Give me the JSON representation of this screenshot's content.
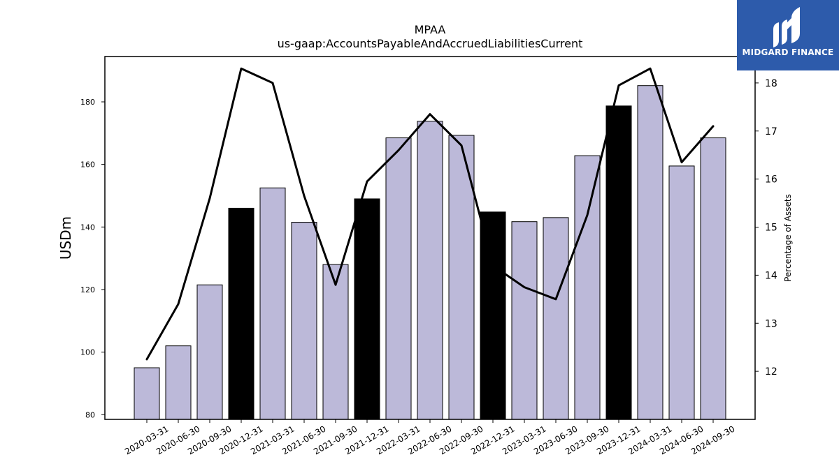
{
  "chart_data": {
    "type": "bar",
    "title": "MPAA",
    "subtitle": "us-gaap:AccountsPayableAndAccruedLiabilitiesCurrent",
    "ylabel": "USDm",
    "y2label": "Percentage of Assets",
    "categories": [
      "2020-03-31",
      "2020-06-30",
      "2020-09-30",
      "2020-12-31",
      "2021-03-31",
      "2021-06-30",
      "2021-09-30",
      "2021-12-31",
      "2022-03-31",
      "2022-06-30",
      "2022-09-30",
      "2022-12-31",
      "2023-03-31",
      "2023-06-30",
      "2023-09-30",
      "2023-12-31",
      "2024-03-31",
      "2024-06-30",
      "2024-09-30"
    ],
    "ylim": [
      78.5,
      194.5
    ],
    "y2lim": [
      11.0,
      18.55
    ],
    "yticks": [
      80,
      100,
      120,
      140,
      160,
      180
    ],
    "y2ticks": [
      12,
      13,
      14,
      15,
      16,
      17,
      18
    ],
    "grid": false,
    "series": [
      {
        "type": "bar",
        "axis": "left",
        "values": [
          95.0,
          102.0,
          121.5,
          146.0,
          152.5,
          141.5,
          128.0,
          149.0,
          168.5,
          173.8,
          169.3,
          144.8,
          141.7,
          143.0,
          162.8,
          178.7,
          185.2,
          159.5,
          168.5
        ],
        "year_end_highlight": [
          false,
          false,
          false,
          true,
          false,
          false,
          false,
          true,
          false,
          false,
          false,
          true,
          false,
          false,
          false,
          true,
          false,
          false,
          false
        ]
      },
      {
        "type": "line",
        "axis": "right",
        "values": [
          12.25,
          13.4,
          15.6,
          18.3,
          18.0,
          15.65,
          13.8,
          15.95,
          16.6,
          17.35,
          16.7,
          14.2,
          13.75,
          13.5,
          15.25,
          17.95,
          18.3,
          16.35,
          17.1
        ]
      }
    ],
    "colors": {
      "bar_fill": "#bcb9d9",
      "bar_highlight_fill": "#000000",
      "bar_edge": "#000000",
      "line": "#000000"
    }
  },
  "logo": {
    "text": "MIDGARD FINANCE",
    "bg_color": "#2d5bab",
    "icon": "midgard-logo-mark"
  }
}
